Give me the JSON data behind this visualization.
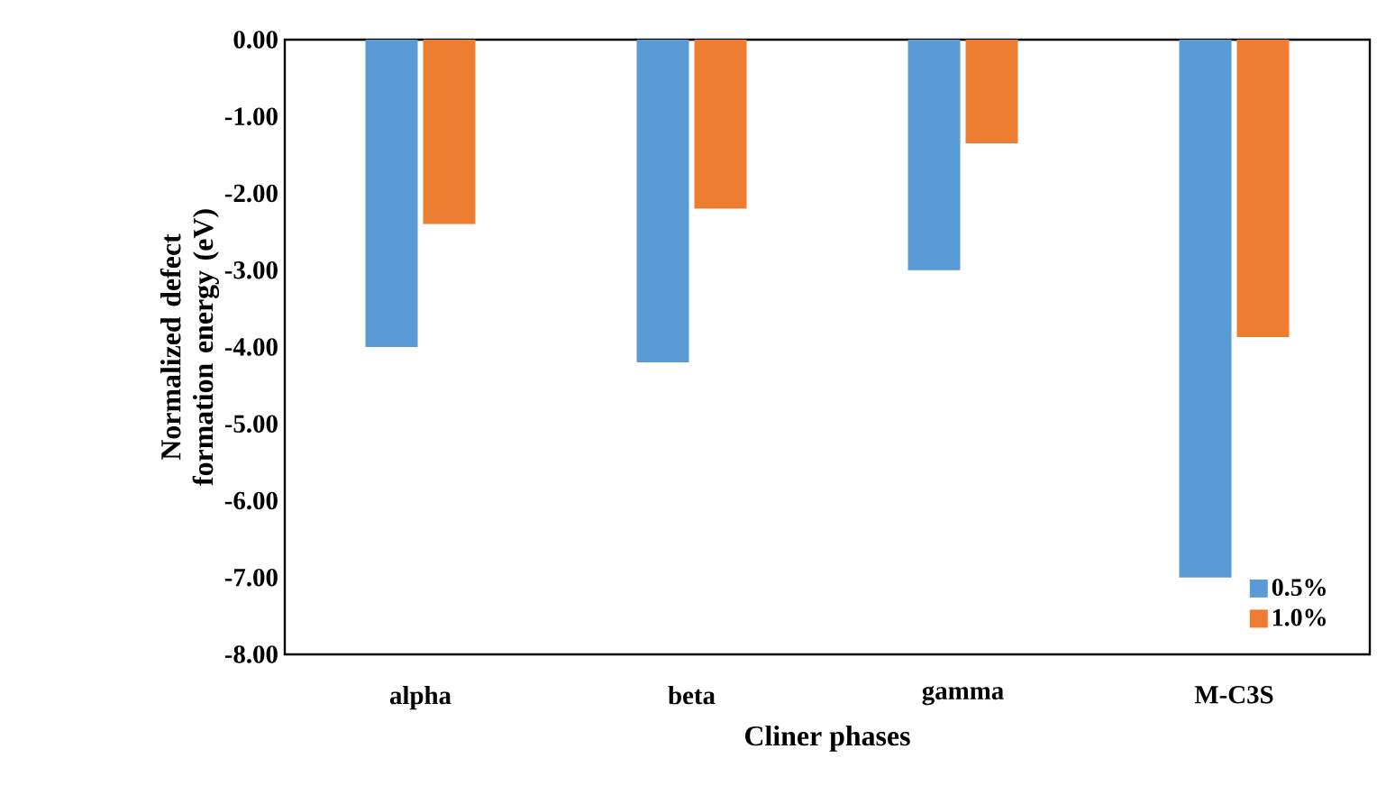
{
  "chart_data": {
    "type": "bar",
    "xlabel": "Cliner phases",
    "ylabel": "Normalized defect formation energy (eV)",
    "categories": [
      "alpha",
      "beta",
      "gamma",
      "M-C3S"
    ],
    "series": [
      {
        "name": "0.5%",
        "color": "#5b9bd5",
        "values": [
          -4.0,
          -4.2,
          -3.0,
          -7.0
        ]
      },
      {
        "name": "1.0%",
        "color": "#ed7d31",
        "values": [
          -2.4,
          -2.2,
          -1.35,
          -3.87
        ]
      }
    ],
    "ylim": [
      -8,
      0
    ],
    "yticks": [
      {
        "value": 0,
        "label": "0.00"
      },
      {
        "value": -1,
        "label": "-1.00"
      },
      {
        "value": -2,
        "label": "-2.00"
      },
      {
        "value": -3,
        "label": "-3.00"
      },
      {
        "value": -4,
        "label": "-4.00"
      },
      {
        "value": -5,
        "label": "-5.00"
      },
      {
        "value": -6,
        "label": "-6.00"
      },
      {
        "value": -7,
        "label": "-7.00"
      },
      {
        "value": -8,
        "label": "-8.00"
      }
    ],
    "legend": "bottom right",
    "grid": false
  }
}
